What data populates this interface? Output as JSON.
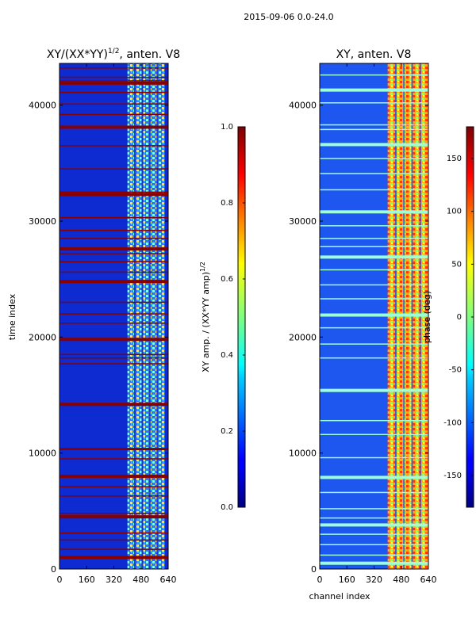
{
  "figure": {
    "suptitle": "2015-09-06 0.0-24.0"
  },
  "chart_data": [
    {
      "type": "heatmap",
      "title_main": "XY/(XX*YY)",
      "title_exp": "1/2",
      "title_tail": ", anten. V8",
      "xlabel": "",
      "ylabel": "time index",
      "xlim": [
        0,
        640
      ],
      "ylim": [
        0,
        43600
      ],
      "xticks": [
        "0",
        "160",
        "320",
        "480",
        "640"
      ],
      "yticks": [
        "0",
        "10000",
        "20000",
        "30000",
        "40000"
      ],
      "colorbar": {
        "label_main": "XY amp. / (XX*YY amp)",
        "label_exp": "1/2",
        "range": [
          0.0,
          1.0
        ],
        "ticks": [
          "0.0",
          "0.2",
          "0.4",
          "0.6",
          "0.8",
          "1.0"
        ]
      },
      "band_channels": [
        400,
        620
      ],
      "bright_rows": [
        1000,
        1700,
        2500,
        3100,
        4500,
        4800,
        6300,
        7100,
        8000,
        9500,
        10300,
        10400,
        14200,
        17700,
        18200,
        18500,
        19800,
        21200,
        22000,
        23000,
        24800,
        25600,
        26500,
        27200,
        27600,
        28500,
        29200,
        30300,
        32300,
        32500,
        34500,
        36500,
        38100,
        39200,
        40100,
        41100,
        41900,
        42100,
        42400,
        43200
      ]
    },
    {
      "type": "heatmap",
      "title": "XY, anten. V8",
      "xlabel": "channel index",
      "ylabel": "",
      "xlim": [
        0,
        640
      ],
      "ylim": [
        0,
        43600
      ],
      "xticks": [
        "0",
        "160",
        "320",
        "480",
        "640"
      ],
      "yticks": [
        "0",
        "10000",
        "20000",
        "30000",
        "40000"
      ],
      "colorbar": {
        "label": "phase (deg)",
        "range": [
          -180,
          180
        ],
        "ticks": [
          "-150",
          "-100",
          "-50",
          "0",
          "50",
          "100",
          "150"
        ]
      },
      "band_channels": [
        400,
        640
      ],
      "bright_rows": [
        500,
        1200,
        2100,
        3000,
        3800,
        4400,
        5200,
        6600,
        7900,
        9600,
        11600,
        12800,
        15400,
        18200,
        19400,
        20800,
        21900,
        23300,
        24500,
        25800,
        26900,
        27800,
        28500,
        29600,
        30800,
        32700,
        34100,
        35400,
        36600,
        37900,
        38300,
        40200,
        41300,
        42600
      ]
    }
  ]
}
